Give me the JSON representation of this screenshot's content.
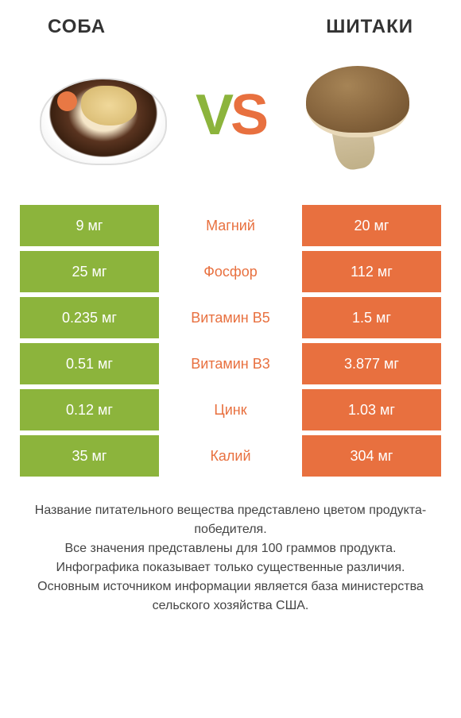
{
  "header": {
    "left_title": "СОБА",
    "right_title": "ШИТАКИ"
  },
  "vs": {
    "v": "V",
    "s": "S"
  },
  "colors": {
    "left": "#8cb43c",
    "right": "#e8703f",
    "vs_v": "#8cb43c",
    "vs_s": "#e8703f"
  },
  "table": {
    "left_bg": "#8cb43c",
    "right_bg": "#e8703f",
    "rows": [
      {
        "left": "9 мг",
        "label": "Магний",
        "right": "20 мг",
        "winner": "right"
      },
      {
        "left": "25 мг",
        "label": "Фосфор",
        "right": "112 мг",
        "winner": "right"
      },
      {
        "left": "0.235 мг",
        "label": "Витамин B5",
        "right": "1.5 мг",
        "winner": "right"
      },
      {
        "left": "0.51 мг",
        "label": "Витамин B3",
        "right": "3.877 мг",
        "winner": "right"
      },
      {
        "left": "0.12 мг",
        "label": "Цинк",
        "right": "1.03 мг",
        "winner": "right"
      },
      {
        "left": "35 мг",
        "label": "Калий",
        "right": "304 мг",
        "winner": "right"
      }
    ]
  },
  "footer": {
    "line1": "Название питательного вещества представлено цветом продукта-победителя.",
    "line2": "Все значения представлены для 100 граммов продукта.",
    "line3": "Инфографика показывает только существенные различия.",
    "line4": "Основным источником информации является база министерства сельского хозяйства США."
  }
}
